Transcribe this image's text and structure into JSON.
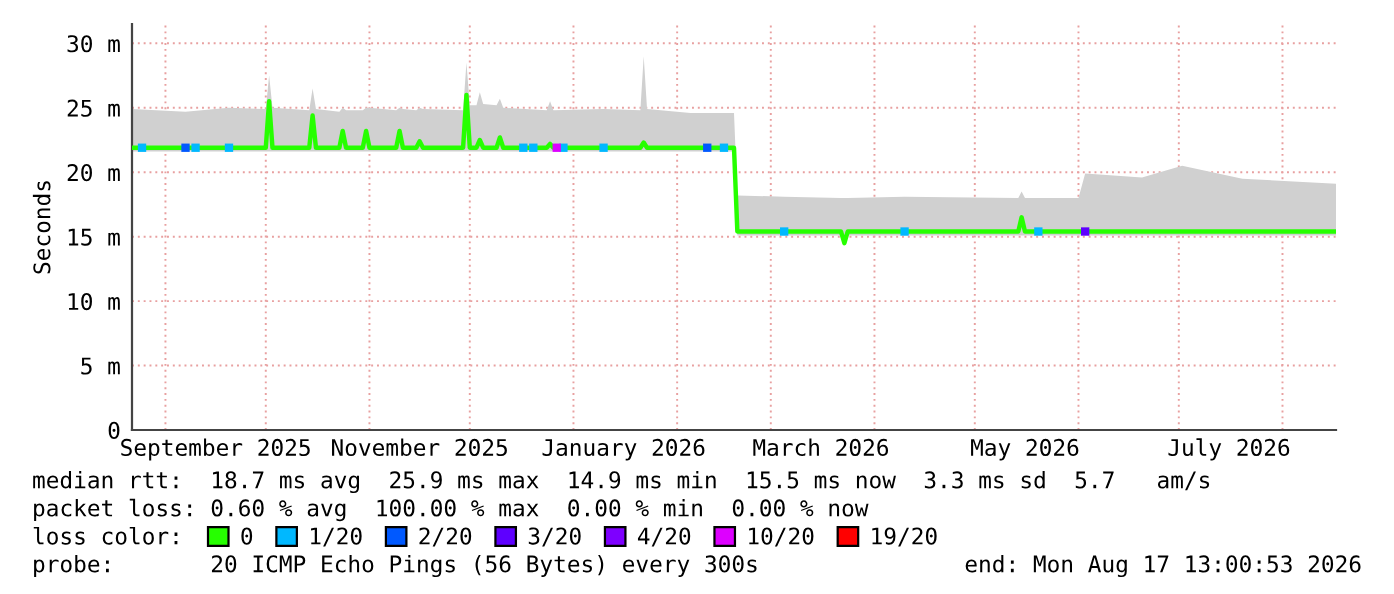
{
  "chart_data": {
    "type": "line",
    "ylabel": "Seconds",
    "legend_title": "loss color:",
    "x": [
      "2025-08-22",
      "2025-09-07",
      "2025-09-20",
      "2025-10-01",
      "2025-10-02",
      "2025-10-03",
      "2025-10-14",
      "2025-10-15",
      "2025-10-16",
      "2025-10-23",
      "2025-10-24",
      "2025-10-25",
      "2025-10-30",
      "2025-10-31",
      "2025-11-01",
      "2025-11-09",
      "2025-11-10",
      "2025-11-11",
      "2025-11-15",
      "2025-11-16",
      "2025-11-17",
      "2025-11-29",
      "2025-11-30",
      "2025-12-01",
      "2025-12-03",
      "2025-12-04",
      "2025-12-05",
      "2025-12-09",
      "2025-12-10",
      "2025-12-11",
      "2025-12-24",
      "2025-12-25",
      "2025-12-26",
      "2026-01-10",
      "2026-01-21",
      "2026-01-22",
      "2026-01-23",
      "2026-02-05",
      "2026-02-18",
      "2026-02-19",
      "2026-03-05",
      "2026-03-22",
      "2026-03-23",
      "2026-03-24",
      "2026-04-10",
      "2026-05-14",
      "2026-05-15",
      "2026-05-16",
      "2026-06-01",
      "2026-06-03",
      "2026-06-20",
      "2026-07-02",
      "2026-07-20",
      "2026-08-17"
    ],
    "series": [
      {
        "name": "0",
        "color": "#26ff00",
        "values": [
          21.9,
          21.9,
          21.9,
          21.9,
          25.5,
          21.9,
          21.9,
          24.4,
          21.9,
          21.9,
          23.2,
          21.9,
          21.9,
          23.2,
          21.9,
          21.9,
          23.2,
          21.9,
          21.9,
          22.4,
          21.9,
          21.9,
          26.0,
          21.9,
          21.9,
          22.5,
          21.9,
          21.9,
          22.7,
          21.9,
          21.9,
          22.2,
          21.9,
          21.9,
          21.9,
          22.3,
          21.9,
          21.9,
          21.9,
          15.4,
          15.4,
          15.4,
          14.5,
          15.4,
          15.4,
          15.4,
          16.5,
          15.4,
          15.4,
          15.4,
          15.4,
          15.4,
          15.4,
          15.4
        ],
        "lower": [
          21.6,
          21.6,
          21.6,
          21.6,
          21.6,
          21.6,
          21.6,
          21.6,
          21.6,
          21.6,
          21.6,
          21.6,
          21.6,
          21.6,
          21.6,
          21.6,
          21.6,
          21.6,
          21.6,
          21.6,
          21.6,
          21.6,
          21.6,
          21.6,
          21.6,
          21.6,
          21.6,
          21.6,
          21.6,
          21.6,
          21.6,
          21.6,
          21.6,
          21.6,
          21.6,
          21.6,
          21.6,
          21.6,
          21.6,
          15.1,
          15.1,
          15.1,
          14.5,
          15.1,
          15.1,
          15.1,
          15.1,
          15.1,
          15.1,
          15.1,
          15.1,
          15.1,
          15.1,
          15.1
        ],
        "upper": [
          24.9,
          24.7,
          25.0,
          24.9,
          27.5,
          25.0,
          24.8,
          26.5,
          24.9,
          24.7,
          25.0,
          24.8,
          24.8,
          25.0,
          25.0,
          24.8,
          25.0,
          24.9,
          24.8,
          25.0,
          24.9,
          24.8,
          28.5,
          25.2,
          25.2,
          26.2,
          25.3,
          25.2,
          25.7,
          25.0,
          24.8,
          25.5,
          24.8,
          24.9,
          24.8,
          29.0,
          24.9,
          24.6,
          24.6,
          18.2,
          18.1,
          18.0,
          18.0,
          18.0,
          18.1,
          18.0,
          18.5,
          18.0,
          18.0,
          19.9,
          19.6,
          20.5,
          19.5,
          19.1
        ]
      },
      {
        "name": "1/20",
        "type": "scatter",
        "color": "#00b8ff",
        "x": [
          "2025-08-25",
          "2025-09-10",
          "2025-09-20",
          "2025-12-17",
          "2025-12-20",
          "2025-12-29",
          "2026-01-10",
          "2026-02-15",
          "2026-03-05",
          "2026-04-10",
          "2026-05-20"
        ],
        "values": [
          21.9,
          21.9,
          21.9,
          21.9,
          21.9,
          21.9,
          21.9,
          21.9,
          15.4,
          15.4,
          15.4
        ]
      },
      {
        "name": "2/20",
        "type": "scatter",
        "color": "#0059ff",
        "x": [
          "2025-09-07",
          "2026-02-10"
        ],
        "values": [
          21.9,
          21.9
        ]
      },
      {
        "name": "3/20",
        "type": "scatter",
        "color": "#5e00ff",
        "x": [
          "2026-06-03"
        ],
        "values": [
          15.4
        ]
      },
      {
        "name": "4/20",
        "type": "scatter",
        "color": "#7e00ff",
        "values": [
          null,
          null,
          null,
          null,
          null,
          null,
          null,
          null,
          null,
          null,
          null,
          null,
          null,
          null,
          null,
          null,
          null,
          null,
          null,
          null,
          null,
          null,
          null,
          null,
          null,
          null,
          null,
          null,
          null,
          null,
          null,
          null,
          null,
          null,
          null,
          null,
          null,
          null,
          null,
          null,
          null,
          null,
          null,
          null,
          null,
          null,
          null,
          null,
          null,
          null,
          null,
          null,
          null,
          null
        ]
      },
      {
        "name": "10/20",
        "type": "scatter",
        "color": "#dd00ff",
        "x": [
          "2025-12-27"
        ],
        "values": [
          21.9
        ]
      },
      {
        "name": "19/20",
        "type": "scatter",
        "color": "#ff0000",
        "values": [
          null,
          null,
          null,
          null,
          null,
          null,
          null,
          null,
          null,
          null,
          null,
          null,
          null,
          null,
          null,
          null,
          null,
          null,
          null,
          null,
          null,
          null,
          null,
          null,
          null,
          null,
          null,
          null,
          null,
          null,
          null,
          null,
          null,
          null,
          null,
          null,
          null,
          null,
          null,
          null,
          null,
          null,
          null,
          null,
          null,
          null,
          null,
          null,
          null,
          null,
          null,
          null,
          null,
          null
        ]
      }
    ],
    "xlim": [
      "2025-08-22",
      "2026-08-17"
    ],
    "xticks": [
      {
        "value": "2025-09-01",
        "label": null
      },
      {
        "value": "2025-10-01",
        "label": null
      },
      {
        "value": "2025-11-01",
        "label": null
      },
      {
        "value": "2025-12-01",
        "label": null
      },
      {
        "value": "2026-01-01",
        "label": null
      },
      {
        "value": "2026-02-01",
        "label": null
      },
      {
        "value": "2026-03-01",
        "label": null
      },
      {
        "value": "2026-04-01",
        "label": null
      },
      {
        "value": "2026-05-01",
        "label": null
      },
      {
        "value": "2026-06-01",
        "label": null
      },
      {
        "value": "2026-07-01",
        "label": null
      },
      {
        "value": "2026-08-01",
        "label": null
      },
      {
        "value": "2025-09-16",
        "label": "September 2025"
      },
      {
        "value": "2025-11-16",
        "label": "November 2025"
      },
      {
        "value": "2026-01-16",
        "label": "January 2026"
      },
      {
        "value": "2026-03-16",
        "label": "March 2026"
      },
      {
        "value": "2026-05-16",
        "label": "May 2026"
      },
      {
        "value": "2026-07-16",
        "label": "July 2026"
      }
    ],
    "ylim": [
      0,
      31.5
    ],
    "yticks": [
      0,
      {
        "value": 5,
        "label": "5 m"
      },
      {
        "value": 10,
        "label": "10 m"
      },
      {
        "value": 15,
        "label": "15 m"
      },
      {
        "value": 20,
        "label": "20 m"
      },
      {
        "value": 25,
        "label": "25 m"
      },
      {
        "value": 30,
        "label": "30 m"
      }
    ],
    "grid": true,
    "legend": "bottom",
    "annotations": [
      "median rtt:  18.7 ms avg  25.9 ms max  14.9 ms min  15.5 ms now  3.3 ms sd  5.7   am/s",
      "packet loss: 0.60 % avg  100.00 % max  0.00 % min  0.00 % now",
      "probe:       20 ICMP Echo Pings (56 Bytes) every 300s",
      "end: Mon Aug 17 13:00:53 2026"
    ]
  }
}
